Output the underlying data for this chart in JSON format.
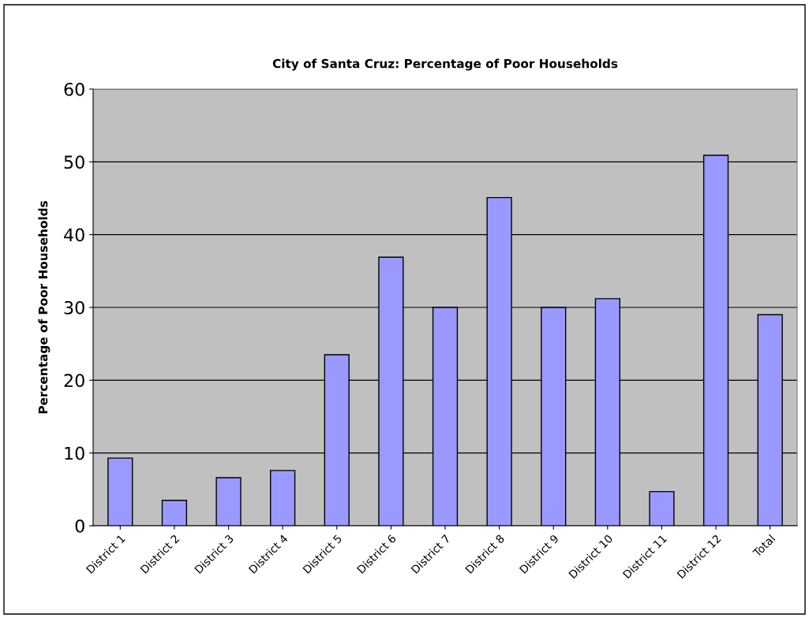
{
  "chart_data": {
    "type": "bar",
    "title": "City of Santa Cruz: Percentage of Poor Households",
    "ylabel": "Percentage of Poor Households",
    "categories": [
      "District 1",
      "District 2",
      "District 3",
      "District 4",
      "District 5",
      "District 6",
      "District 7",
      "District 8",
      "District 9",
      "District 10",
      "District 11",
      "District 12",
      "Total"
    ],
    "values": [
      9.3,
      3.5,
      6.6,
      7.6,
      23.5,
      36.9,
      30.0,
      45.1,
      30.0,
      31.2,
      4.7,
      50.9,
      29.0
    ],
    "color": "#9999ff",
    "ylim": [
      0,
      60
    ],
    "yticks": [
      0,
      10,
      20,
      30,
      40,
      50,
      60
    ],
    "grid": "y",
    "legend": false
  }
}
